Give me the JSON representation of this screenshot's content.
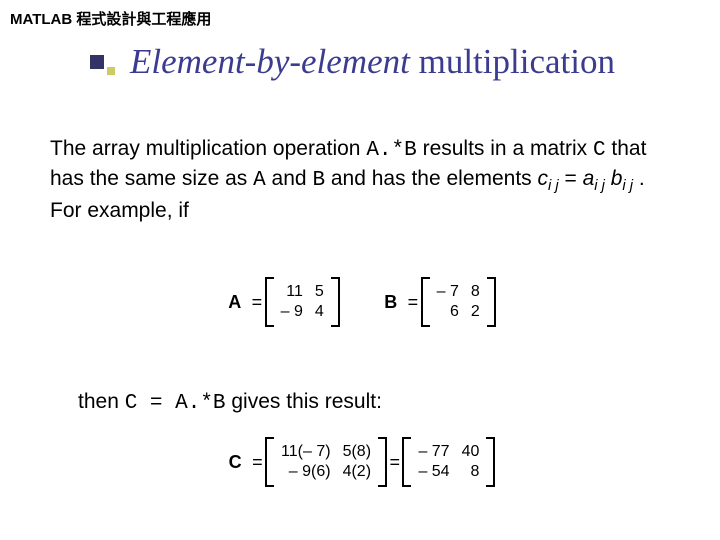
{
  "header": "MATLAB 程式設計與工程應用",
  "title_italic": "Element-by-element",
  "title_rest": " multiplication",
  "para_1a": "The array multiplication operation ",
  "para_1_code": "A.*B",
  "para_1b": " results in a matrix ",
  "para_1c": "C",
  "para_1d": " that has the same size as ",
  "para_1e": "A",
  "para_1f": " and ",
  "para_1g": "B",
  "para_1h": " and has the elements ",
  "para_cij": "c",
  "para_ij1": "i j",
  "para_eq": " = ",
  "para_aij": "a",
  "para_ij2": "i j",
  "para_sp": " ",
  "para_bij": "b",
  "para_ij3": "i j",
  "para_end": " .  For example, if",
  "A_label": "A",
  "B_label": "B",
  "C_label": "C",
  "eq_sign": "=",
  "matA": {
    "r0c0": "11",
    "r0c1": "5",
    "r1c0": "– 9",
    "r1c1": "4"
  },
  "matB": {
    "r0c0": "– 7",
    "r0c1": "8",
    "r1c0": "6",
    "r1c1": "2"
  },
  "then_a": "then ",
  "then_code": "C = A.*B",
  "then_b": " gives this result:",
  "matCcalc": {
    "r0c0": "11(– 7)",
    "r0c1": "5(8)",
    "r1c0": "– 9(6)",
    "r1c1": "4(2)"
  },
  "matCres": {
    "r0c0": "– 77",
    "r0c1": "40",
    "r1c0": "– 54",
    "r1c1": "8"
  }
}
